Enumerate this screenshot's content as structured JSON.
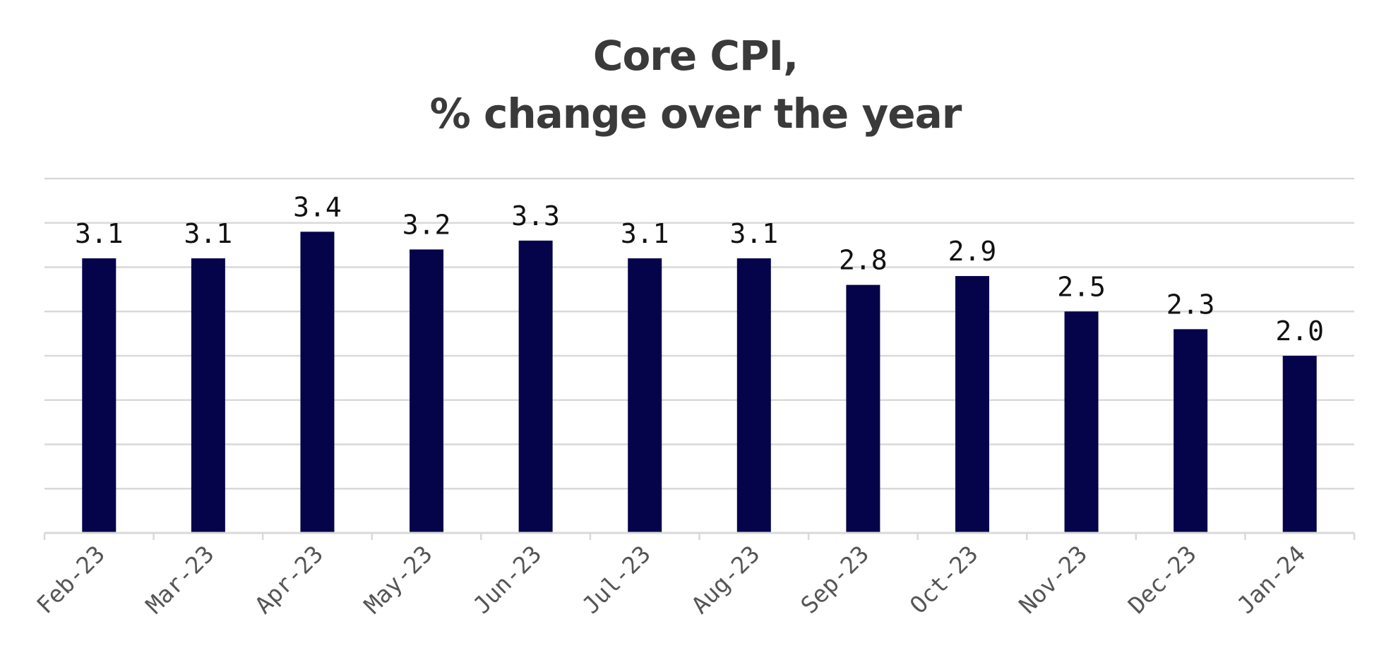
{
  "chart_data": {
    "type": "bar",
    "title_lines": [
      "Core CPI,",
      "% change over the year"
    ],
    "categories": [
      "Feb-23",
      "Mar-23",
      "Apr-23",
      "May-23",
      "Jun-23",
      "Jul-23",
      "Aug-23",
      "Sep-23",
      "Oct-23",
      "Nov-23",
      "Dec-23",
      "Jan-24"
    ],
    "values": [
      3.1,
      3.1,
      3.4,
      3.2,
      3.3,
      3.1,
      3.1,
      2.8,
      2.9,
      2.5,
      2.3,
      2.0
    ],
    "data_labels": [
      "3.1",
      "3.1",
      "3.4",
      "3.2",
      "3.3",
      "3.1",
      "3.1",
      "2.8",
      "2.9",
      "2.5",
      "2.3",
      "2.0"
    ],
    "xlabel": "",
    "ylabel": "",
    "ylim": [
      0,
      4.0
    ],
    "y_axis_labels_shown": false,
    "grid": true,
    "legend": "none",
    "colors": {
      "bar": "#05044a",
      "grid": "#d9d9d9",
      "title": "#3a3a3a"
    }
  }
}
